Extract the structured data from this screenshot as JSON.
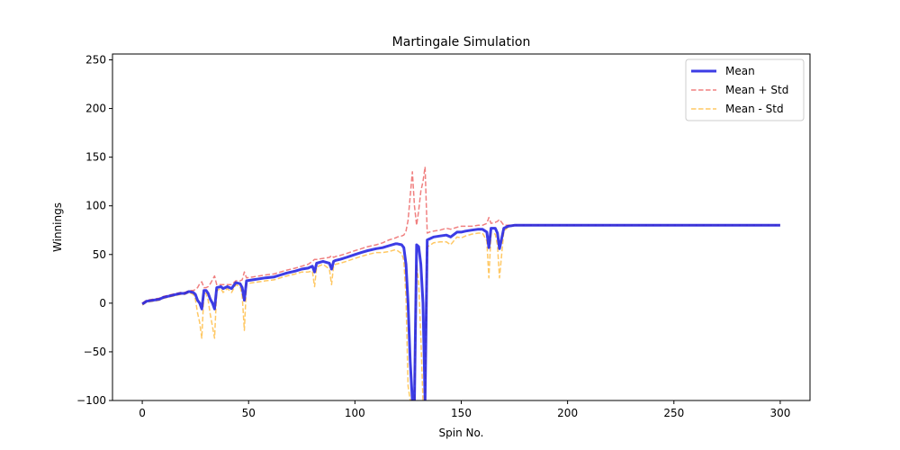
{
  "chart_data": {
    "type": "line",
    "title": "Martingale Simulation",
    "xlabel": "Spin No.",
    "ylabel": "Winnings",
    "xlim": [
      -14,
      314
    ],
    "ylim": [
      -100,
      256
    ],
    "xticks": [
      0,
      50,
      100,
      150,
      200,
      250,
      300
    ],
    "yticks": [
      -100,
      -50,
      0,
      50,
      100,
      150,
      200,
      250
    ],
    "ytick_labels": [
      "−100",
      "−50",
      "0",
      "50",
      "100",
      "150",
      "200",
      "250"
    ],
    "grid": false,
    "legend_position": "top-right",
    "colors": {
      "mean": "#1a1ae0",
      "upper": "#f08080",
      "lower": "#ffc864"
    },
    "series": [
      {
        "name": "Mean",
        "style": "solid",
        "x": [
          0,
          2,
          5,
          8,
          10,
          12,
          14,
          16,
          18,
          20,
          22,
          24,
          25,
          26,
          27,
          28,
          29,
          30,
          31,
          32,
          33,
          34,
          35,
          37,
          38,
          40,
          42,
          44,
          46,
          47,
          48,
          49,
          52,
          55,
          58,
          62,
          65,
          68,
          72,
          75,
          78,
          80,
          81,
          82,
          85,
          88,
          89,
          90,
          91,
          93,
          96,
          100,
          103,
          106,
          110,
          113,
          116,
          119,
          120,
          122,
          123,
          124,
          125,
          126,
          127,
          128,
          129,
          130,
          131,
          132,
          133,
          134,
          135,
          137,
          140,
          143,
          145,
          148,
          150,
          152,
          155,
          158,
          160,
          162,
          163,
          164,
          166,
          167,
          168,
          170,
          172,
          175,
          180,
          200,
          250,
          300
        ],
        "y": [
          -1,
          2,
          3,
          4,
          6,
          7,
          8,
          9,
          10,
          10,
          12,
          11,
          9,
          3,
          0,
          -6,
          13,
          13,
          10,
          4,
          0,
          -6,
          16,
          17,
          15,
          17,
          15,
          21,
          20,
          16,
          3,
          23,
          24,
          25,
          26,
          27,
          29,
          31,
          33,
          35,
          36,
          38,
          32,
          41,
          43,
          41,
          35,
          43,
          44,
          45,
          47,
          50,
          52,
          54,
          56,
          57,
          59,
          61,
          61,
          60,
          57,
          40,
          0,
          -60,
          -100,
          -100,
          60,
          58,
          40,
          0,
          -100,
          65,
          66,
          68,
          69,
          70,
          68,
          73,
          73,
          74,
          75,
          76,
          76,
          73,
          57,
          77,
          77,
          72,
          56,
          77,
          79,
          80,
          80,
          80,
          80,
          80
        ]
      },
      {
        "name": "Mean + Std",
        "style": "dashed",
        "x": [
          0,
          2,
          5,
          8,
          10,
          12,
          14,
          16,
          18,
          20,
          22,
          24,
          25,
          26,
          27,
          28,
          29,
          30,
          31,
          32,
          33,
          34,
          35,
          37,
          38,
          40,
          42,
          44,
          46,
          47,
          48,
          49,
          52,
          55,
          58,
          62,
          65,
          68,
          72,
          75,
          78,
          80,
          81,
          82,
          85,
          88,
          89,
          90,
          91,
          93,
          96,
          100,
          103,
          106,
          110,
          113,
          116,
          119,
          120,
          122,
          123,
          124,
          125,
          126,
          127,
          128,
          129,
          130,
          131,
          132,
          133,
          134,
          135,
          137,
          140,
          143,
          145,
          148,
          150,
          152,
          155,
          158,
          160,
          162,
          163,
          164,
          166,
          167,
          168,
          170,
          172,
          175,
          180,
          200,
          250,
          300
        ],
        "y": [
          0,
          3,
          4,
          5,
          7,
          8,
          9,
          10,
          11,
          11,
          13,
          13,
          14,
          16,
          20,
          22,
          16,
          16,
          17,
          20,
          24,
          28,
          19,
          19,
          19,
          19,
          19,
          23,
          23,
          24,
          32,
          26,
          27,
          28,
          29,
          30,
          32,
          34,
          36,
          38,
          40,
          43,
          45,
          45,
          46,
          47,
          49,
          47,
          48,
          49,
          51,
          54,
          56,
          58,
          60,
          62,
          65,
          67,
          68,
          69,
          70,
          74,
          85,
          110,
          135,
          100,
          80,
          95,
          115,
          125,
          140,
          72,
          73,
          74,
          75,
          77,
          76,
          78,
          79,
          79,
          79,
          80,
          80,
          82,
          88,
          82,
          83,
          84,
          86,
          80,
          80,
          80,
          80,
          80,
          80,
          80
        ]
      },
      {
        "name": "Mean - Std",
        "style": "dashed",
        "x": [
          0,
          2,
          5,
          8,
          10,
          12,
          14,
          16,
          18,
          20,
          22,
          24,
          25,
          26,
          27,
          28,
          29,
          30,
          31,
          32,
          33,
          34,
          35,
          37,
          38,
          40,
          42,
          44,
          46,
          47,
          48,
          49,
          52,
          55,
          58,
          62,
          65,
          68,
          72,
          75,
          78,
          80,
          81,
          82,
          85,
          88,
          89,
          90,
          91,
          93,
          96,
          100,
          103,
          106,
          110,
          113,
          116,
          119,
          120,
          122,
          123,
          124,
          125,
          126,
          127,
          128,
          129,
          130,
          131,
          132,
          133,
          134,
          135,
          137,
          140,
          143,
          145,
          148,
          150,
          152,
          155,
          158,
          160,
          162,
          163,
          164,
          166,
          167,
          168,
          170,
          172,
          175,
          180,
          200,
          250,
          300
        ],
        "y": [
          -2,
          1,
          2,
          3,
          5,
          6,
          7,
          8,
          9,
          9,
          11,
          9,
          4,
          -10,
          -20,
          -36,
          10,
          10,
          3,
          -12,
          -24,
          -36,
          13,
          15,
          11,
          15,
          11,
          19,
          17,
          8,
          -28,
          20,
          21,
          22,
          23,
          24,
          26,
          28,
          30,
          32,
          32,
          33,
          17,
          37,
          40,
          35,
          19,
          39,
          40,
          41,
          43,
          46,
          48,
          50,
          52,
          52,
          53,
          55,
          54,
          51,
          44,
          6,
          -85,
          -100,
          -100,
          -100,
          40,
          21,
          -35,
          -100,
          -100,
          58,
          59,
          62,
          63,
          63,
          60,
          68,
          67,
          69,
          71,
          72,
          72,
          64,
          26,
          72,
          71,
          60,
          26,
          74,
          78,
          80,
          80,
          80,
          80,
          80
        ]
      }
    ]
  }
}
